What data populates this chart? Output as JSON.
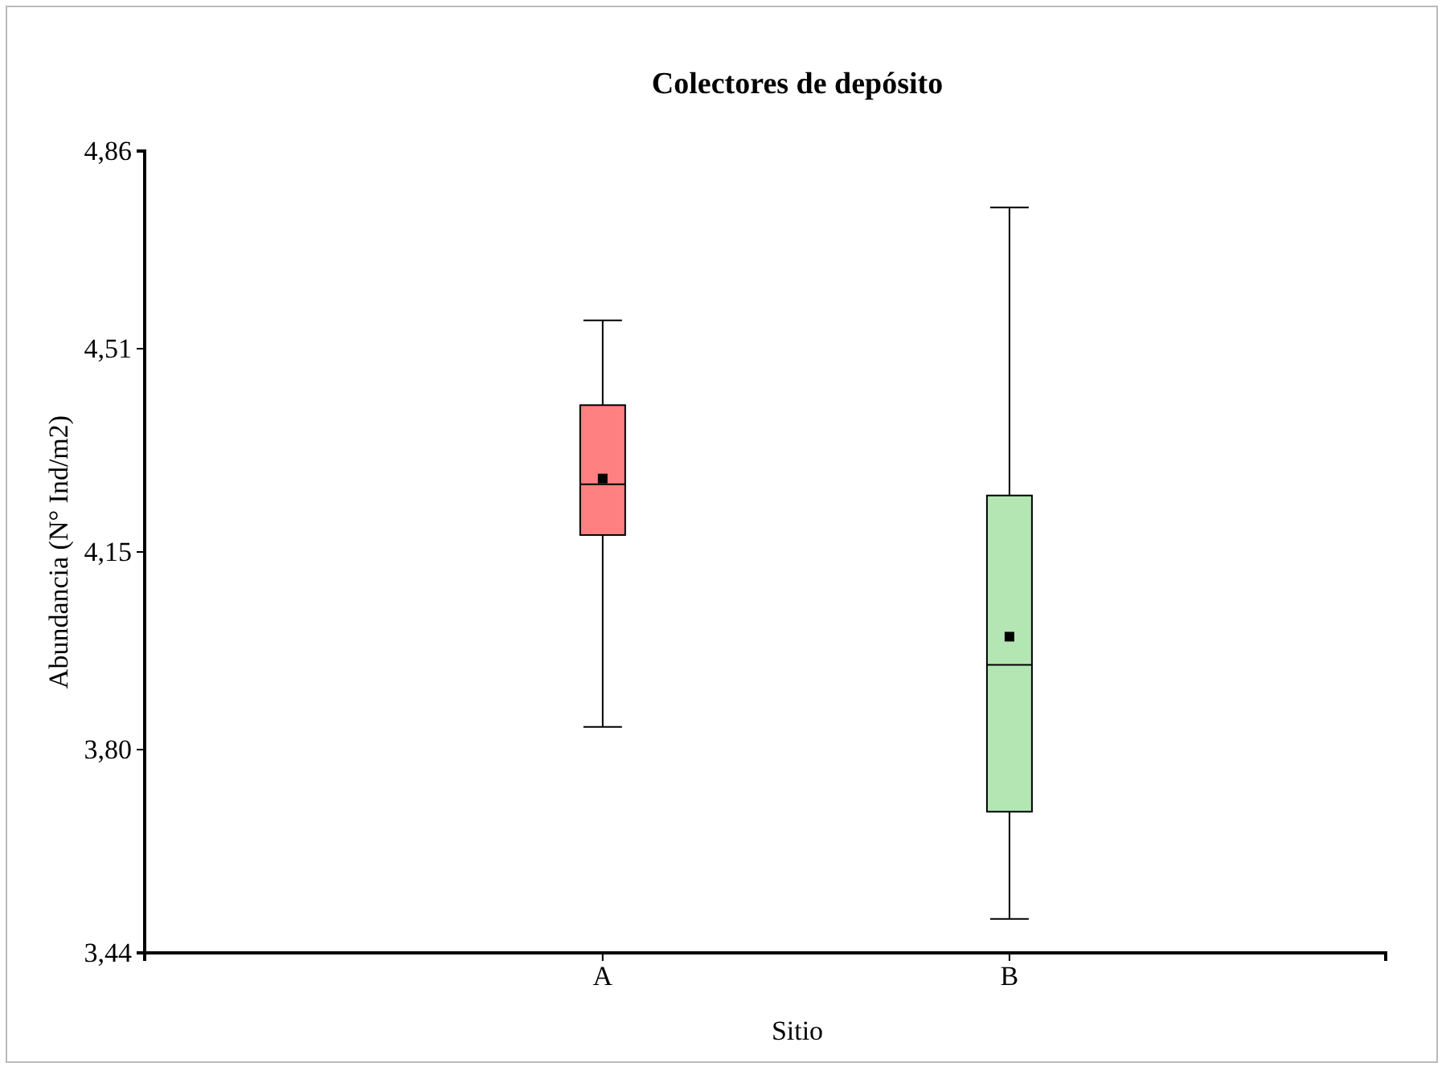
{
  "chart_data": {
    "type": "box",
    "title": "Colectores de depósito",
    "xlabel": "Sitio",
    "ylabel": "Abundancia (N° Ind/m2)",
    "categories": [
      "A",
      "B"
    ],
    "boxes": [
      {
        "low": 3.84,
        "q1": 4.18,
        "median": 4.27,
        "q3": 4.41,
        "high": 4.56,
        "mean": 4.28
      },
      {
        "low": 3.5,
        "q1": 3.69,
        "median": 3.95,
        "q3": 4.25,
        "high": 4.76,
        "mean": 4.0
      }
    ],
    "colors": [
      "#ff8080",
      "#b3e6b3"
    ],
    "ylim": [
      3.44,
      4.86
    ],
    "yticks": [
      {
        "value": 3.44,
        "label": "3,44"
      },
      {
        "value": 3.8,
        "label": "3,80"
      },
      {
        "value": 4.15,
        "label": "4,15"
      },
      {
        "value": 4.51,
        "label": "4,51"
      },
      {
        "value": 4.86,
        "label": "4,86"
      }
    ],
    "grid": false
  }
}
